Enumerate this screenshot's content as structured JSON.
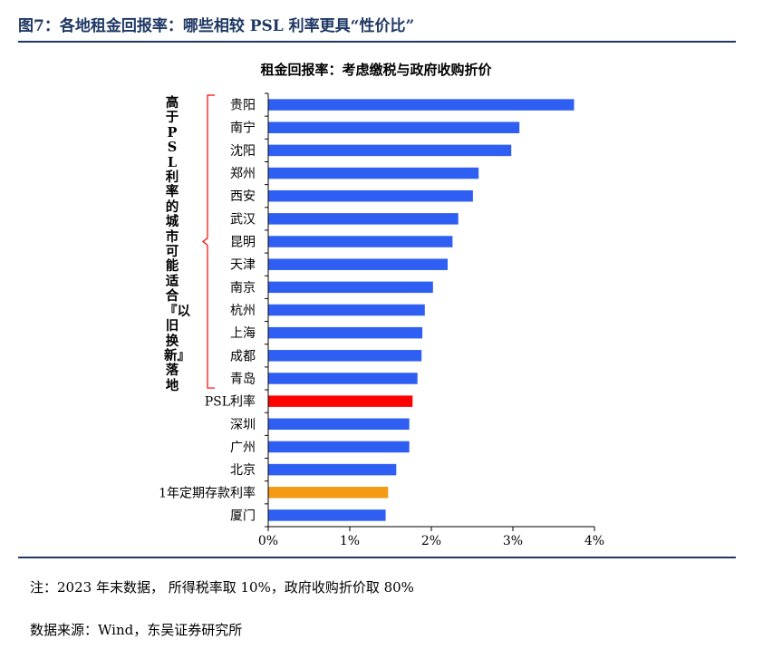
{
  "figure": {
    "title": "图7：各地租金回报率：哪些相较 PSL 利率更具“性价比”",
    "note": "注：2023 年末数据，  所得税率取 10%，政府收购折价取 80%",
    "source": "数据来源：Wind，东吴证券研究所"
  },
  "chart_data": {
    "type": "bar",
    "orientation": "horizontal",
    "title": "租金回报率：考虑缴税与政府收购折价",
    "categories": [
      "贵阳",
      "南宁",
      "沈阳",
      "郑州",
      "西安",
      "武汉",
      "昆明",
      "天津",
      "南京",
      "杭州",
      "上海",
      "成都",
      "青岛",
      "PSL利率",
      "深圳",
      "广州",
      "北京",
      "1年定期存款利率",
      "厦门"
    ],
    "values": [
      3.75,
      3.08,
      2.98,
      2.58,
      2.51,
      2.33,
      2.26,
      2.2,
      2.02,
      1.92,
      1.89,
      1.88,
      1.83,
      1.77,
      1.73,
      1.73,
      1.57,
      1.47,
      1.44
    ],
    "colors": [
      "#2f5ff2",
      "#2f5ff2",
      "#2f5ff2",
      "#2f5ff2",
      "#2f5ff2",
      "#2f5ff2",
      "#2f5ff2",
      "#2f5ff2",
      "#2f5ff2",
      "#2f5ff2",
      "#2f5ff2",
      "#2f5ff2",
      "#2f5ff2",
      "#ff0000",
      "#2f5ff2",
      "#2f5ff2",
      "#2f5ff2",
      "#f39b14",
      "#2f5ff2"
    ],
    "xlim": [
      0,
      4
    ],
    "xticks": [
      "0%",
      "1%",
      "2%",
      "3%",
      "4%"
    ],
    "unit": "%",
    "annotation": "高于PSL利率的城市可能适合『以旧换新』落地",
    "annotation_range": [
      "贵阳",
      "青岛"
    ],
    "bracket_color": "#ff0000"
  }
}
